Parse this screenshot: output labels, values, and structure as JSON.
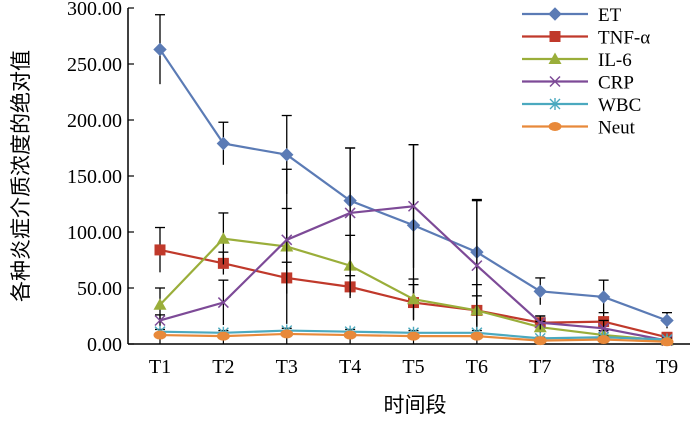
{
  "chart_data": {
    "type": "line",
    "xlabel": "时间段",
    "ylabel": "各种炎症介质浓度的绝对值",
    "ylim": [
      0,
      300
    ],
    "y_ticks": [
      "0.00",
      "50.00",
      "100.00",
      "150.00",
      "200.00",
      "250.00",
      "300.00"
    ],
    "categories": [
      "T1",
      "T2",
      "T3",
      "T4",
      "T5",
      "T6",
      "T7",
      "T8",
      "T9"
    ],
    "grid": false,
    "legend_position": "top-right",
    "series": [
      {
        "name": "ET",
        "color": "#5b7bb5",
        "marker": "diamond",
        "values": [
          263,
          179,
          169,
          128,
          106,
          82,
          47,
          42,
          21
        ],
        "errors": [
          31,
          19,
          35,
          47,
          72,
          47,
          12,
          15,
          7
        ]
      },
      {
        "name": "TNF-α",
        "color": "#c0392b",
        "marker": "square",
        "values": [
          84,
          72,
          59,
          51,
          37,
          30,
          19,
          20,
          6
        ],
        "errors": [
          20,
          10,
          14,
          10,
          16,
          13,
          6,
          8,
          3
        ]
      },
      {
        "name": "IL-6",
        "color": "#9aae3a",
        "marker": "triangle",
        "values": [
          35,
          94,
          87,
          70,
          40,
          30,
          15,
          8,
          3
        ],
        "errors": [
          15,
          23,
          69,
          27,
          18,
          23,
          5,
          4,
          2
        ]
      },
      {
        "name": "CRP",
        "color": "#7d4a97",
        "marker": "x",
        "values": [
          21,
          37,
          93,
          117,
          123,
          70,
          19,
          14,
          3
        ],
        "errors": [
          5,
          20,
          28,
          58,
          55,
          58,
          6,
          7,
          2
        ]
      },
      {
        "name": "WBC",
        "color": "#4ba9bf",
        "marker": "star",
        "values": [
          11,
          10,
          12,
          11,
          10,
          10,
          5,
          6,
          4
        ],
        "errors": [
          2,
          2,
          2,
          2,
          2,
          2,
          1,
          1,
          1
        ]
      },
      {
        "name": "Neut",
        "color": "#e8893a",
        "marker": "circle",
        "values": [
          8,
          7,
          9,
          8,
          7,
          7,
          3,
          4,
          2
        ],
        "errors": [
          1,
          1,
          1,
          1,
          1,
          1,
          1,
          1,
          1
        ]
      }
    ]
  }
}
